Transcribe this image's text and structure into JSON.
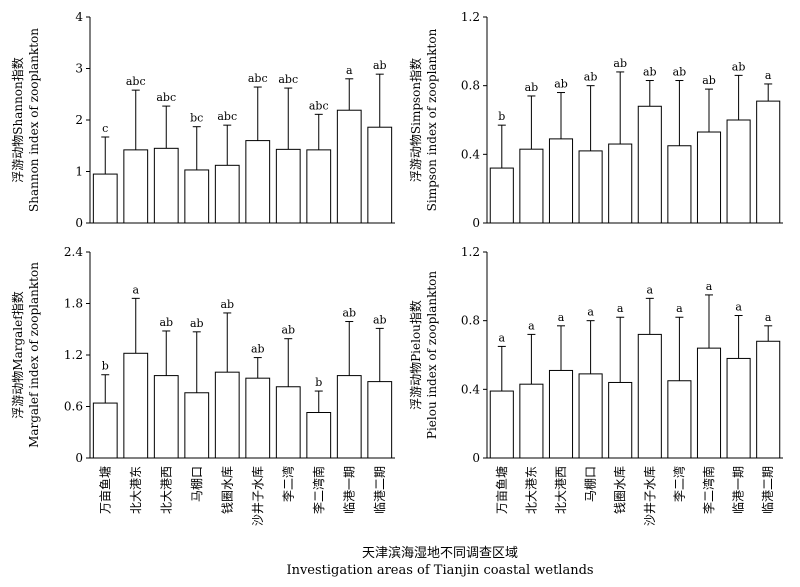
{
  "chart_data": [
    {
      "type": "bar",
      "title": "",
      "ylabel_cn": "浮游动物Shannon指数",
      "ylabel_en": "Shannon index of zooplankton",
      "xlabel": "",
      "ylim": [
        0,
        4
      ],
      "yticks": [
        0,
        1,
        2,
        3,
        4
      ],
      "ytick_labels": [
        "0",
        "1",
        "2",
        "3",
        "4"
      ],
      "categories": [
        "万亩鱼塘",
        "北大港东",
        "北大港西",
        "马棚口",
        "钱圈水库",
        "沙井子水库",
        "李二湾",
        "李二湾南",
        "临港一期",
        "临港二期"
      ],
      "values": [
        0.95,
        1.42,
        1.45,
        1.03,
        1.12,
        1.6,
        1.43,
        1.42,
        2.19,
        1.86
      ],
      "error": [
        0.72,
        1.16,
        0.82,
        0.84,
        0.78,
        1.04,
        1.19,
        0.69,
        0.61,
        1.03
      ],
      "significance": [
        "c",
        "abc",
        "abc",
        "bc",
        "abc",
        "abc",
        "abc",
        "abc",
        "a",
        "ab"
      ],
      "grid": false
    },
    {
      "type": "bar",
      "title": "",
      "ylabel_cn": "浮游动物Simpson指数",
      "ylabel_en": "Simpson index of zooplankton",
      "xlabel": "",
      "ylim": [
        0,
        1.2
      ],
      "yticks": [
        0,
        0.4,
        0.8,
        1.2
      ],
      "ytick_labels": [
        "0",
        "0.4",
        "0.8",
        "1.2"
      ],
      "categories": [
        "万亩鱼塘",
        "北大港东",
        "北大港西",
        "马棚口",
        "钱圈水库",
        "沙井子水库",
        "李二湾",
        "李二湾南",
        "临港一期",
        "临港二期"
      ],
      "values": [
        0.32,
        0.43,
        0.49,
        0.42,
        0.46,
        0.68,
        0.45,
        0.53,
        0.6,
        0.71
      ],
      "error": [
        0.25,
        0.31,
        0.27,
        0.38,
        0.42,
        0.15,
        0.38,
        0.25,
        0.26,
        0.1
      ],
      "significance": [
        "b",
        "ab",
        "ab",
        "ab",
        "ab",
        "ab",
        "ab",
        "ab",
        "ab",
        "a"
      ],
      "grid": false
    },
    {
      "type": "bar",
      "title": "",
      "ylabel_cn": "浮游动物Margalef指数",
      "ylabel_en": "Margalef index of zooplankton",
      "xlabel": "",
      "ylim": [
        0,
        2.4
      ],
      "yticks": [
        0,
        0.6,
        1.2,
        1.8,
        2.4
      ],
      "ytick_labels": [
        "0",
        "0.6",
        "1.2",
        "1.8",
        "2.4"
      ],
      "categories": [
        "万亩鱼塘",
        "北大港东",
        "北大港西",
        "马棚口",
        "钱圈水库",
        "沙井子水库",
        "李二湾",
        "李二湾南",
        "临港一期",
        "临港二期"
      ],
      "values": [
        0.64,
        1.22,
        0.96,
        0.76,
        1.0,
        0.93,
        0.83,
        0.53,
        0.96,
        0.89
      ],
      "error": [
        0.33,
        0.64,
        0.52,
        0.71,
        0.69,
        0.24,
        0.56,
        0.25,
        0.63,
        0.62
      ],
      "significance": [
        "b",
        "a",
        "ab",
        "ab",
        "ab",
        "ab",
        "ab",
        "b",
        "ab",
        "ab"
      ],
      "grid": false
    },
    {
      "type": "bar",
      "title": "",
      "ylabel_cn": "浮游动物Pielou指数",
      "ylabel_en": "Pielou index of zooplankton",
      "xlabel": "",
      "ylim": [
        0,
        1.2
      ],
      "yticks": [
        0,
        0.4,
        0.8,
        1.2
      ],
      "ytick_labels": [
        "0",
        "0.4",
        "0.8",
        "1.2"
      ],
      "categories": [
        "万亩鱼塘",
        "北大港东",
        "北大港西",
        "马棚口",
        "钱圈水库",
        "沙井子水库",
        "李二湾",
        "李二湾南",
        "临港一期",
        "临港二期"
      ],
      "values": [
        0.39,
        0.43,
        0.51,
        0.49,
        0.44,
        0.72,
        0.45,
        0.64,
        0.58,
        0.68
      ],
      "error": [
        0.26,
        0.29,
        0.26,
        0.31,
        0.38,
        0.21,
        0.37,
        0.31,
        0.25,
        0.09
      ],
      "significance": [
        "a",
        "a",
        "a",
        "a",
        "a",
        "a",
        "a",
        "a",
        "a",
        "a"
      ],
      "grid": false
    }
  ],
  "x_title_cn": "天津滨海湿地不同调查区域",
  "x_title_en": "Investigation areas of Tianjin coastal wetlands"
}
